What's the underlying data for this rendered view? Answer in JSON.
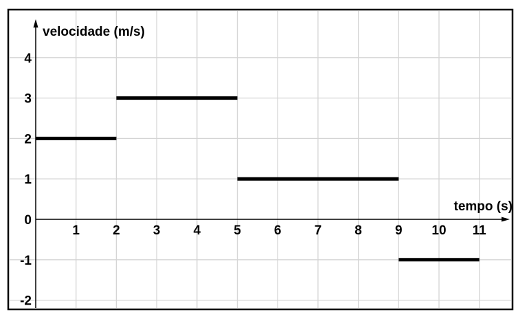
{
  "chart_data": {
    "type": "line",
    "xlabel": "tempo (s)",
    "ylabel": "velocidade (m/s)",
    "xlim": [
      0,
      11.6
    ],
    "ylim": [
      -2,
      4.9
    ],
    "grid": true,
    "x_ticks": [
      1,
      2,
      3,
      4,
      5,
      6,
      7,
      8,
      9,
      10,
      11
    ],
    "y_ticks": [
      4,
      3,
      2,
      1,
      0,
      -1,
      -2
    ],
    "segments": [
      {
        "x_start": 0,
        "x_end": 2,
        "y": 2
      },
      {
        "x_start": 2,
        "x_end": 5,
        "y": 3
      },
      {
        "x_start": 5,
        "x_end": 9,
        "y": 1
      },
      {
        "x_start": 9,
        "x_end": 11,
        "y": -1
      }
    ]
  }
}
